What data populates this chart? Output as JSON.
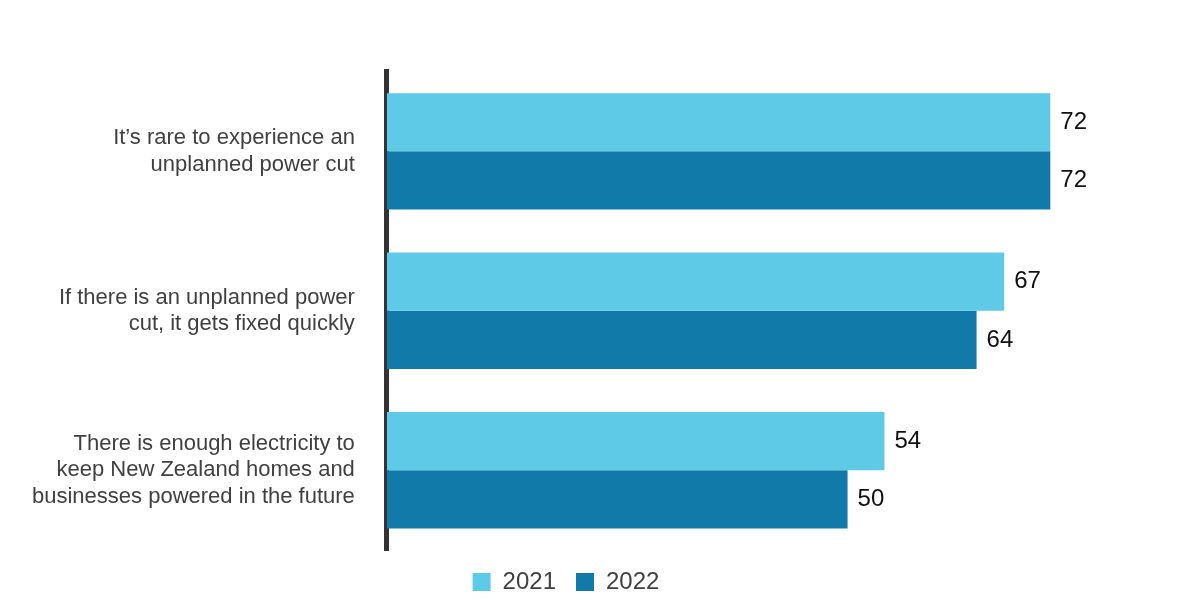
{
  "chart_data": {
    "type": "bar",
    "orientation": "horizontal",
    "categories": [
      "It’s rare to experience an unplanned power cut",
      "If there is an unplanned power cut, it gets fixed quickly",
      "There is enough electricity to keep New Zealand homes and businesses powered in the future"
    ],
    "series": [
      {
        "name": "2021",
        "color": "#5ecae8",
        "values": [
          72,
          67,
          54
        ]
      },
      {
        "name": "2022",
        "color": "#127aa8",
        "values": [
          72,
          64,
          50
        ]
      }
    ],
    "data_labels": true,
    "legend": "bottom"
  }
}
